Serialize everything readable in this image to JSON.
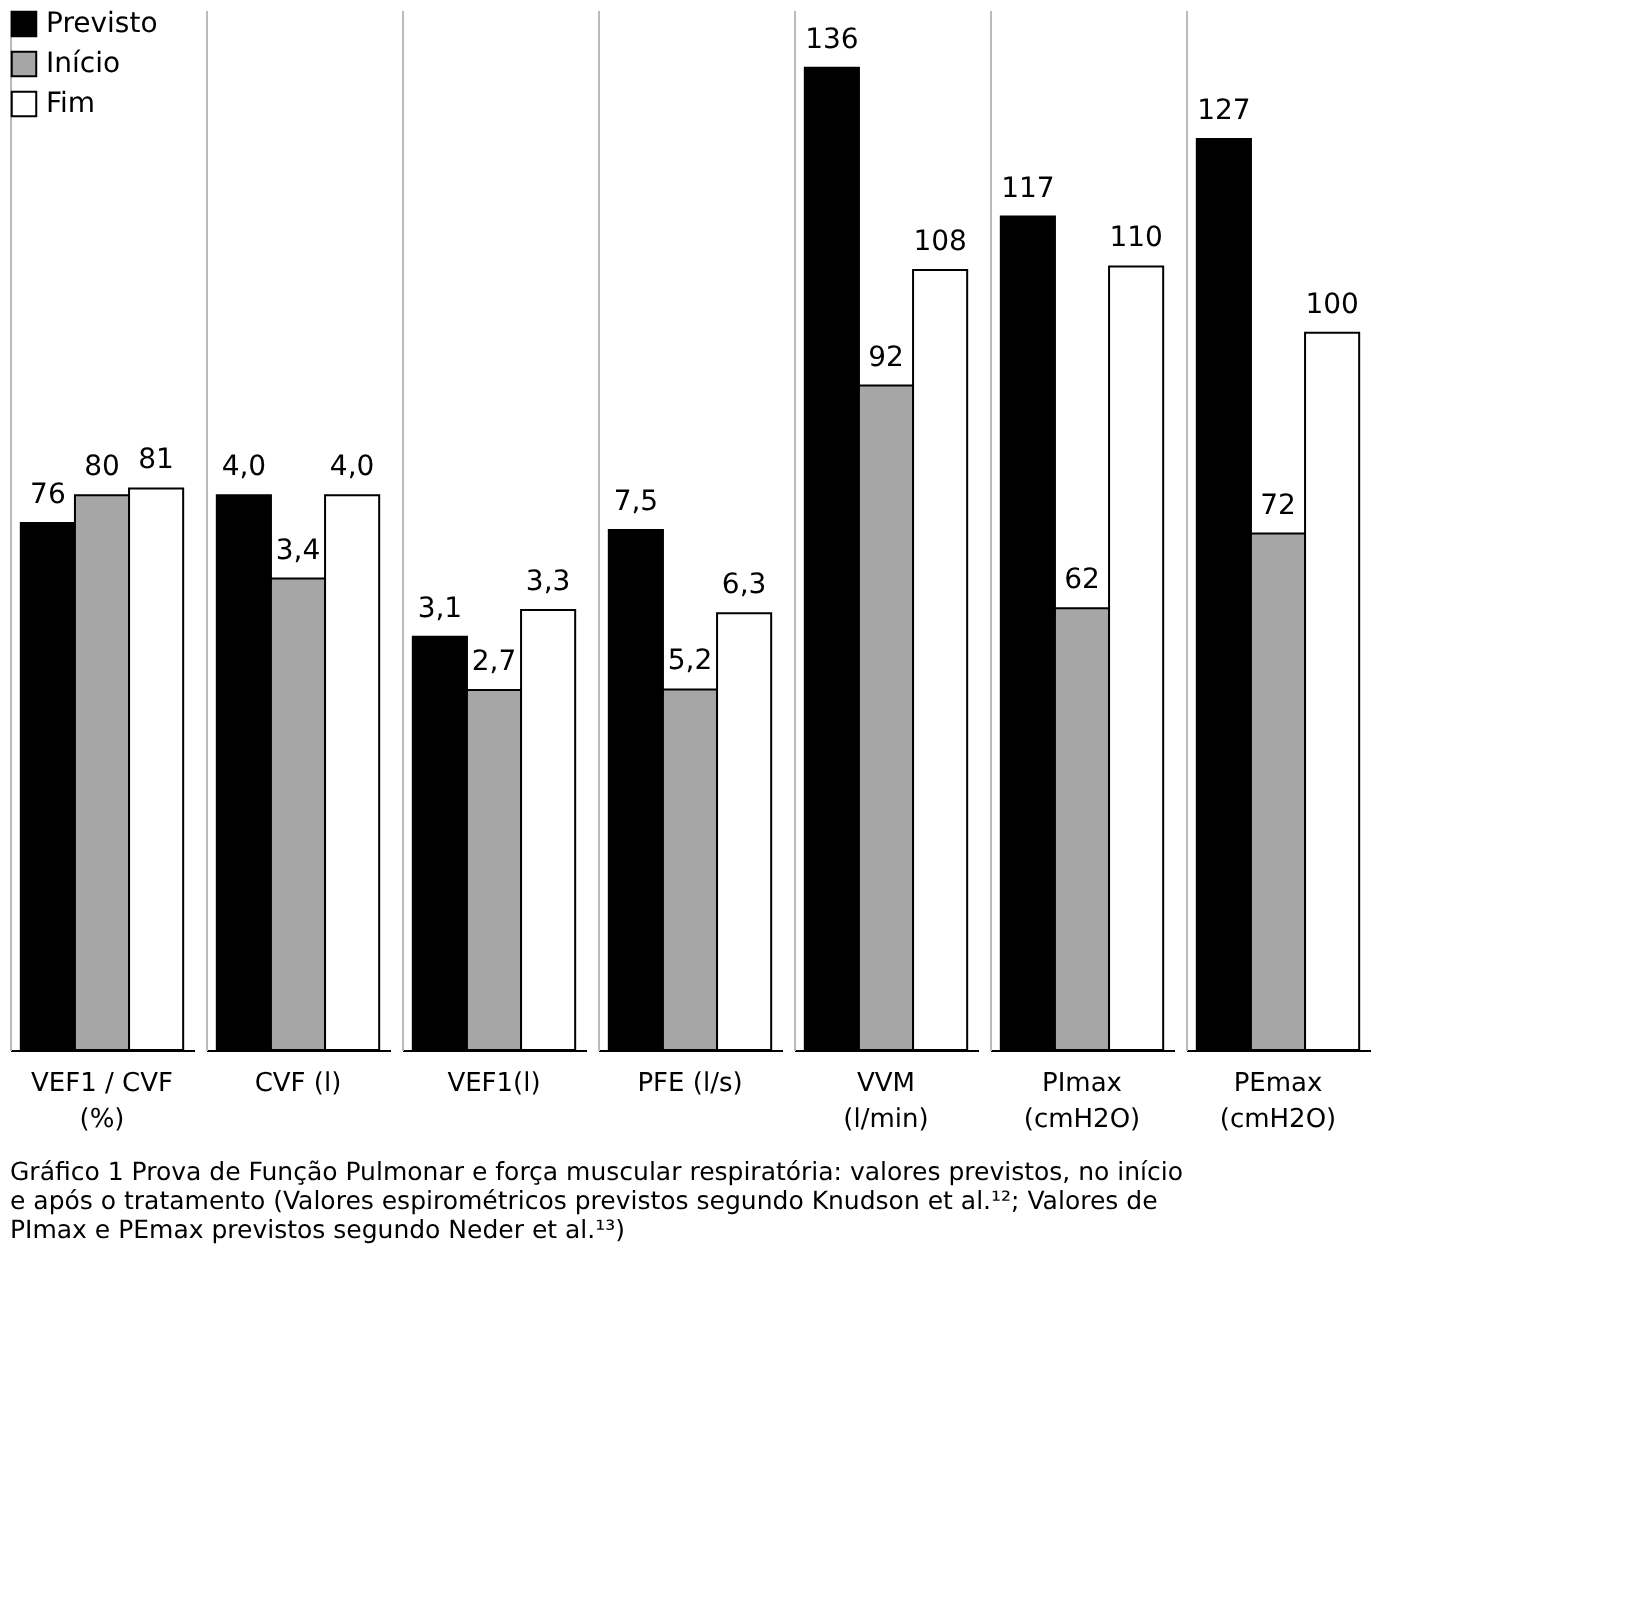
{
  "chart_data": [
    {
      "type": "bar",
      "categories": [
        "VEF1 / CVF (%)"
      ],
      "ylim": [
        0,
        150
      ],
      "tick_labels": "x",
      "legend": "top left",
      "series": [
        {
          "name": "Previsto",
          "color": "#000000",
          "values": [
            76
          ],
          "value_labels": [
            "76"
          ]
        },
        {
          "name": "Início",
          "color": "#a6a6a6",
          "values": [
            80
          ],
          "value_labels": [
            "80"
          ]
        },
        {
          "name": "Fim",
          "color": "#ffffff",
          "values": [
            81
          ],
          "value_labels": [
            "81"
          ]
        }
      ]
    },
    {
      "type": "bar",
      "categories": [
        "CVF (l)"
      ],
      "ylim": [
        0,
        7.5
      ],
      "tick_labels": "x",
      "series": [
        {
          "color": "#000000",
          "values": [
            4.0
          ],
          "value_labels": [
            "4,0"
          ]
        },
        {
          "color": "#a6a6a6",
          "values": [
            3.4
          ],
          "value_labels": [
            "3,4"
          ]
        },
        {
          "color": "#ffffff",
          "values": [
            4.0
          ],
          "value_labels": [
            "4,0"
          ]
        }
      ]
    },
    {
      "type": "bar",
      "categories": [
        "VEF1(l)"
      ],
      "ylim": [
        0,
        7.8
      ],
      "tick_labels": "x",
      "series": [
        {
          "color": "#000000",
          "values": [
            3.1
          ],
          "value_labels": [
            "3,1"
          ]
        },
        {
          "color": "#a6a6a6",
          "values": [
            2.7
          ],
          "value_labels": [
            "2,7"
          ]
        },
        {
          "color": "#ffffff",
          "values": [
            3.3
          ],
          "value_labels": [
            "3,3"
          ]
        }
      ]
    },
    {
      "type": "bar",
      "categories": [
        "PFE (l/s)"
      ],
      "ylim": [
        0,
        15
      ],
      "tick_labels": "x",
      "series": [
        {
          "color": "#000000",
          "values": [
            7.5
          ],
          "value_labels": [
            "7,5"
          ]
        },
        {
          "color": "#a6a6a6",
          "values": [
            5.2
          ],
          "value_labels": [
            "5,2"
          ]
        },
        {
          "color": "#ffffff",
          "values": [
            6.3
          ],
          "value_labels": [
            "6,3"
          ]
        }
      ]
    },
    {
      "type": "bar",
      "categories": [
        "VVM (l/min)"
      ],
      "ylim": [
        0,
        144
      ],
      "tick_labels": "x",
      "series": [
        {
          "color": "#000000",
          "values": [
            136
          ],
          "value_labels": [
            "136"
          ]
        },
        {
          "color": "#a6a6a6",
          "values": [
            92
          ],
          "value_labels": [
            "92"
          ]
        },
        {
          "color": "#ffffff",
          "values": [
            108
          ],
          "value_labels": [
            "108"
          ]
        }
      ]
    },
    {
      "type": "bar",
      "categories": [
        "PImax (cmH2O)"
      ],
      "ylim": [
        0,
        146
      ],
      "tick_labels": "x",
      "series": [
        {
          "color": "#000000",
          "values": [
            117
          ],
          "value_labels": [
            "117"
          ]
        },
        {
          "color": "#a6a6a6",
          "values": [
            62
          ],
          "value_labels": [
            "62"
          ]
        },
        {
          "color": "#ffffff",
          "values": [
            110
          ],
          "value_labels": [
            "110"
          ]
        }
      ]
    },
    {
      "type": "bar",
      "categories": [
        "PEmax (cmH2O)"
      ],
      "ylim": [
        0,
        145
      ],
      "tick_labels": "x",
      "series": [
        {
          "color": "#000000",
          "values": [
            127
          ],
          "value_labels": [
            "127"
          ]
        },
        {
          "color": "#a6a6a6",
          "values": [
            72
          ],
          "value_labels": [
            "72"
          ]
        },
        {
          "color": "#ffffff",
          "values": [
            100
          ],
          "value_labels": [
            "100"
          ]
        }
      ],
      "annotations": [
        "Gráfico 1  Prova de Função Pulmonar e força muscular respiratória: valores previstos, no início e após o tratamento (Valores espirométricos previstos segundo Knudson et al.¹²; Valores de PImax e PEmax previstos segundo Neder et al.¹³)"
      ]
    }
  ]
}
